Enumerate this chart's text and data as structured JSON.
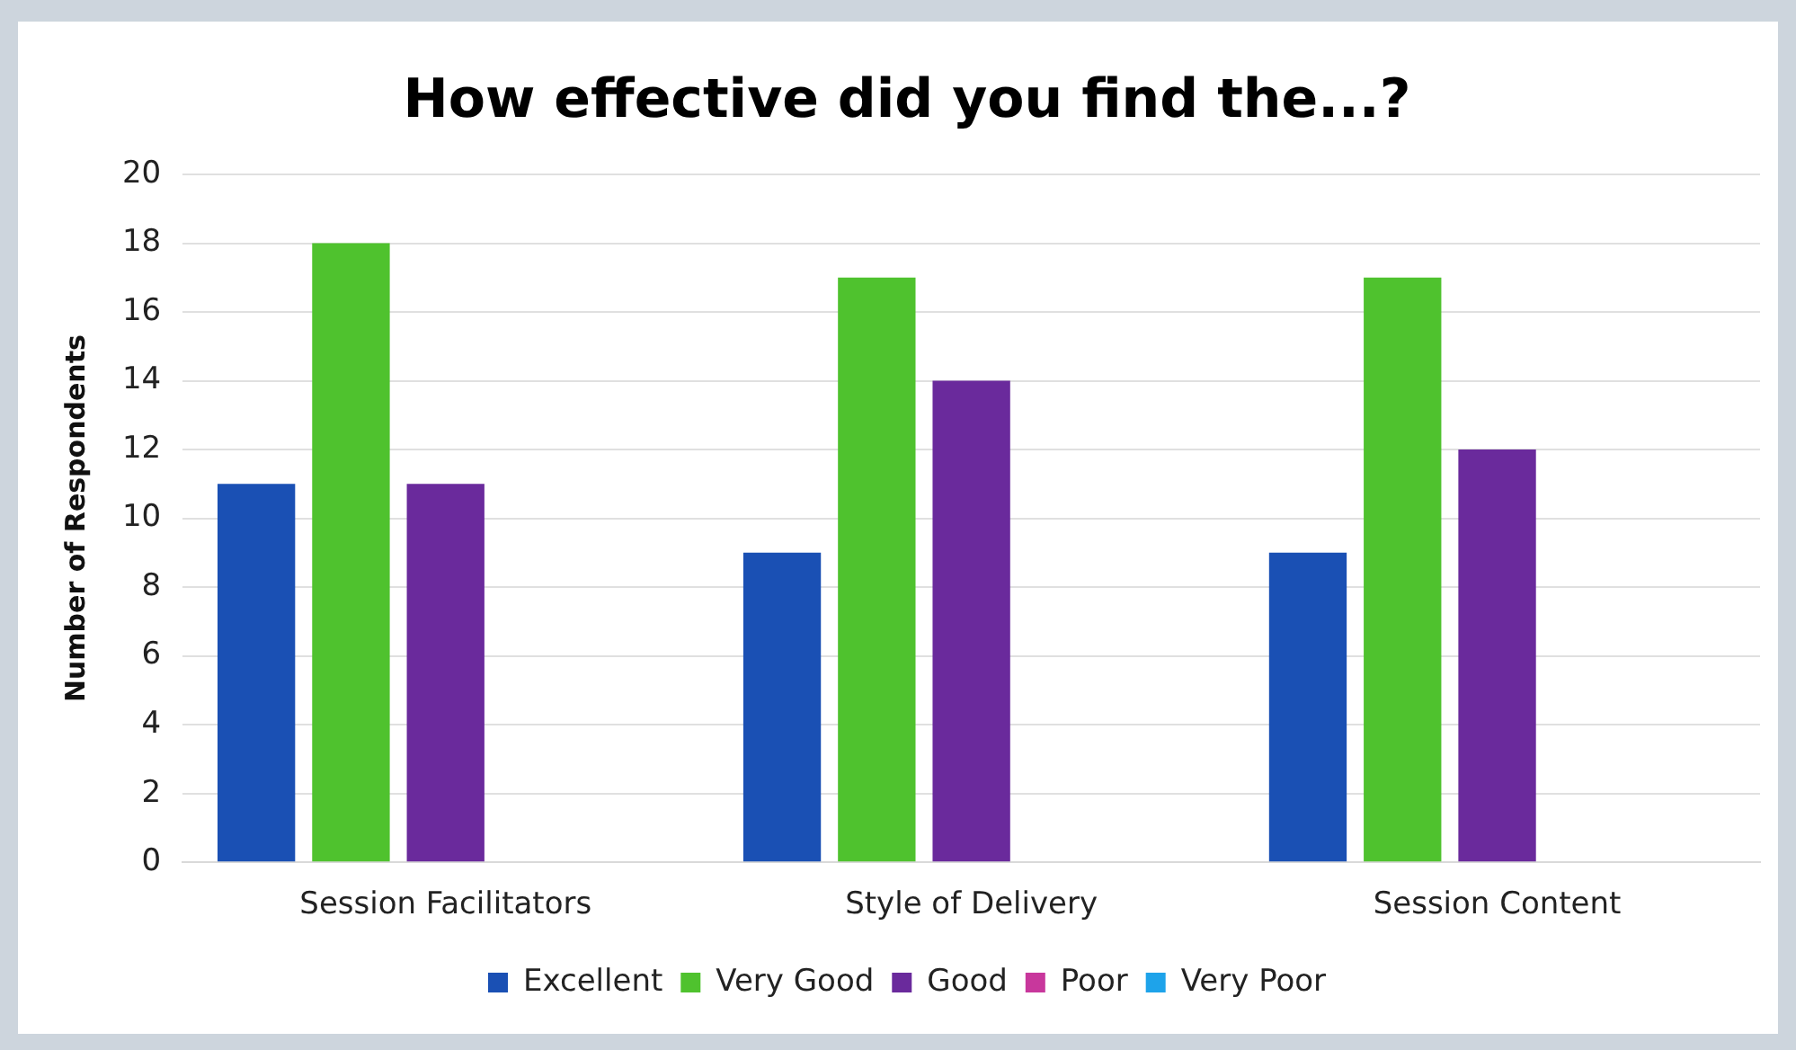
{
  "chart_data": {
    "type": "bar",
    "title": "How effective did you find the...?",
    "ylabel": "Number of Respondents",
    "categories": [
      "Session Facilitators",
      "Style of Delivery",
      "Session Content"
    ],
    "series": [
      {
        "name": "Excellent",
        "color": "#1a50b4",
        "values": [
          11,
          9,
          9
        ]
      },
      {
        "name": "Very Good",
        "color": "#4fc22e",
        "values": [
          18,
          17,
          17
        ]
      },
      {
        "name": "Good",
        "color": "#6a2a9c",
        "values": [
          11,
          14,
          12
        ]
      },
      {
        "name": "Poor",
        "color": "#c8379c",
        "values": [
          0,
          0,
          0
        ]
      },
      {
        "name": "Very Poor",
        "color": "#1ea3ea",
        "values": [
          0,
          0,
          0
        ]
      }
    ],
    "ylim": [
      0,
      20
    ],
    "yticks": [
      0,
      2,
      4,
      6,
      8,
      10,
      12,
      14,
      16,
      18,
      20
    ],
    "grid": "y",
    "legend": "bottom"
  }
}
